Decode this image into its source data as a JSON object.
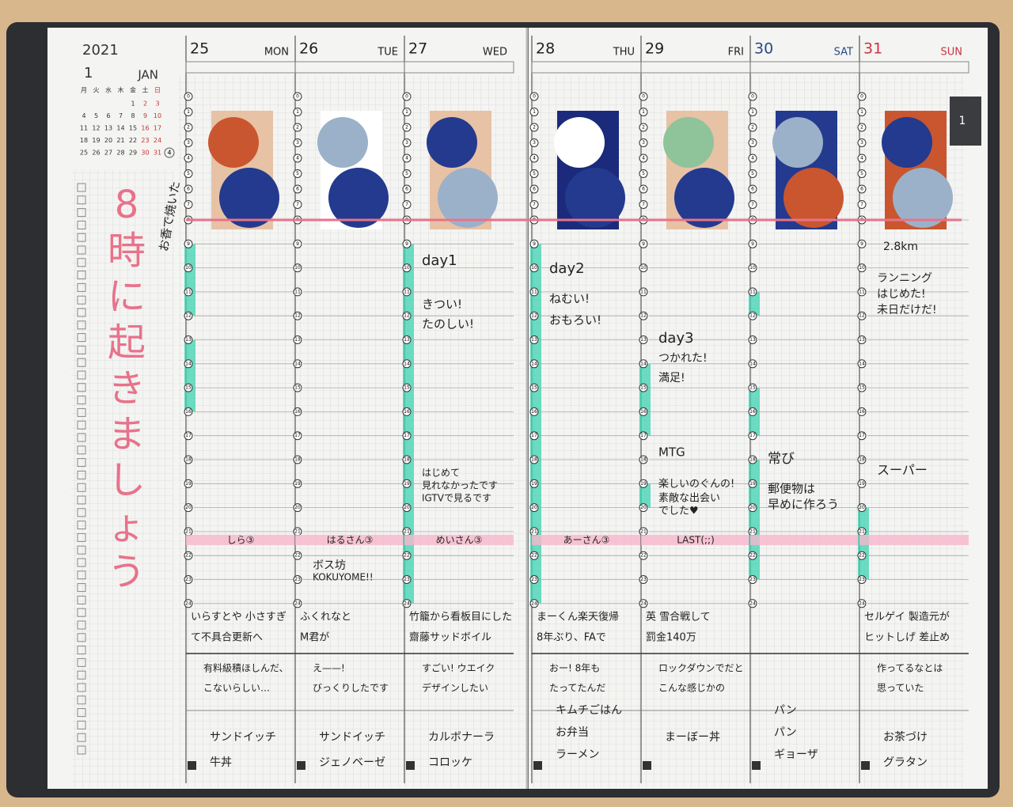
{
  "header": {
    "year": "2021",
    "month_number": "1",
    "month_name": "JAN"
  },
  "mini_calendar": {
    "weekdays": [
      "月",
      "火",
      "水",
      "木",
      "金",
      "土",
      "日"
    ],
    "weeks": [
      [
        null,
        null,
        null,
        null,
        "1",
        "2",
        "3"
      ],
      [
        "4",
        "5",
        "6",
        "7",
        "8",
        "9",
        "10"
      ],
      [
        "11",
        "12",
        "13",
        "14",
        "15",
        "16",
        "17"
      ],
      [
        "18",
        "19",
        "20",
        "21",
        "22",
        "23",
        "24"
      ],
      [
        "25",
        "26",
        "27",
        "28",
        "29",
        "30",
        "31"
      ]
    ],
    "next": "4"
  },
  "tab": "1",
  "hours": [
    "0",
    "1",
    "2",
    "3",
    "4",
    "5",
    "6",
    "7",
    "8",
    "9",
    "10",
    "11",
    "12",
    "13",
    "14",
    "15",
    "16",
    "17",
    "18",
    "19",
    "20",
    "21",
    "22",
    "23",
    "24"
  ],
  "left_note": {
    "title": [
      "8",
      "時",
      "に",
      "起",
      "き",
      "ま",
      "し",
      "ょ",
      "う"
    ],
    "aside": "お香で焼いた"
  },
  "days": [
    {
      "date": "25",
      "weekday": "MON",
      "notes": [],
      "evening": "しら③",
      "memo": [
        "いらすとや 小さすぎ",
        "て不具合更新へ"
      ],
      "feeling": [
        "有料級積ほしんだ、",
        "こないらしい…"
      ],
      "meals": [
        "サンドイッチ",
        "牛丼"
      ]
    },
    {
      "date": "26",
      "weekday": "TUE",
      "notes": [
        "ボス坊",
        "KOKUYOME!!"
      ],
      "evening": "はるさん③",
      "memo": [
        "ふくれなと",
        "M君が"
      ],
      "feeling": [
        "え——!",
        "びっくりしたです"
      ],
      "meals": [
        "サンドイッチ",
        "ジェノベーゼ"
      ]
    },
    {
      "date": "27",
      "weekday": "WED",
      "notes": [
        "day1",
        "きつい!",
        "たのしい!",
        "はじめて",
        "見れなかったです",
        "IGTVで見るです"
      ],
      "evening": "めいさん③",
      "memo": [
        "竹籠から看板目にした",
        "齋藤サッドボイル"
      ],
      "feeling": [
        "すごい! ウエイク",
        "デザインしたい"
      ],
      "meals": [
        "カルボナーラ",
        "コロッケ"
      ]
    },
    {
      "date": "28",
      "weekday": "THU",
      "notes": [
        "day2",
        "ねむい!",
        "おもろい!"
      ],
      "evening": "あーさん③",
      "memo": [
        "まーくん楽天復帰",
        "8年ぶり、FAで"
      ],
      "feeling": [
        "おー! 8年も",
        "たってたんだ"
      ],
      "meals": [
        "キムチごはん",
        "お弁当",
        "ラーメン"
      ]
    },
    {
      "date": "29",
      "weekday": "FRI",
      "notes": [
        "day3",
        "つかれた!",
        "満足!",
        "MTG",
        "楽しいのぐんの!",
        "素敵な出会い",
        "でした♥"
      ],
      "evening": "LAST(;;)",
      "memo": [
        "英 雪合戦して",
        "罰金140万"
      ],
      "feeling": [
        "ロックダウンでだと",
        "こんな感じかの"
      ],
      "meals": [
        "まーぼー丼"
      ]
    },
    {
      "date": "30",
      "weekday": "SAT",
      "notes": [
        "常び",
        "郵便物は",
        "早めに作ろう"
      ],
      "evening": null,
      "memo": [],
      "feeling": [],
      "meals": [
        "パン",
        "パン",
        "ギョーザ"
      ]
    },
    {
      "date": "31",
      "weekday": "SUN",
      "notes": [
        "2.8km",
        "ランニング",
        "はじめた!",
        "未日だけだ!",
        "スーパー"
      ],
      "evening": null,
      "memo": [
        "セルゲイ 製造元が",
        "ヒットしげ 差止め"
      ],
      "feeling": [
        "作ってるなとは",
        "思っていた"
      ],
      "meals": [
        "お茶づけ",
        "グラタン"
      ]
    }
  ]
}
